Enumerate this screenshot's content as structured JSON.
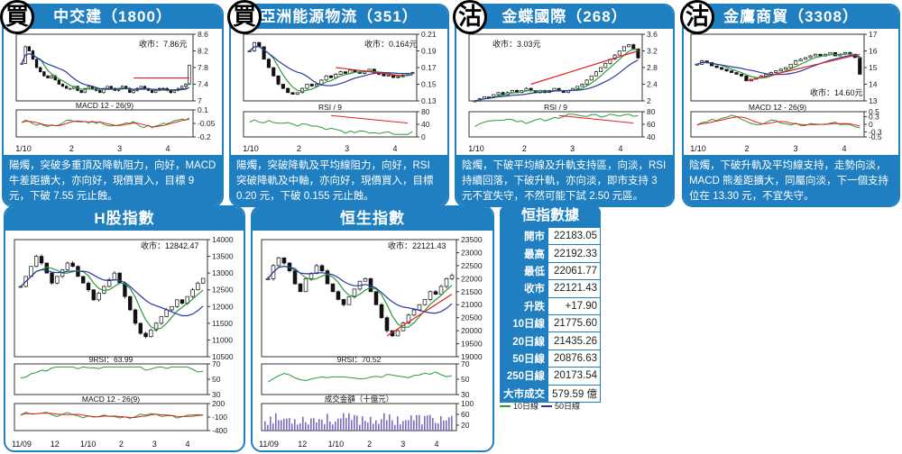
{
  "panels": [
    {
      "badge": "買",
      "title": "中交建（1800）",
      "close_label": "收市：7.86元",
      "macd_label": "MACD 12 - 26(9)",
      "desc": "陽燭，突破多重頂及降軌阻力，向好，MACD 牛差距擴大，亦向好，現價買入，目標 9 元，下破 7.55 元止蝕。"
    },
    {
      "badge": "買",
      "title": "亞洲能源物流（351）",
      "close_label": "收市：0.164元",
      "rsi_label": "RSI / 9",
      "desc": "陽燭，突破降軌及平均線阻力，向好，RSI 突破降軌及中軸，亦向好，現價買入，目標 0.20 元，下破 0.155 元止蝕。"
    },
    {
      "badge": "沽",
      "title": "金蝶國際（268）",
      "close_label": "收市：3.03元",
      "rsi_label": "RSI / 9",
      "desc": "陰燭，下破平均線及升軌支持區，向淡，RSI 持續回落，下破升軌，亦向淡，即市支持 3 元不宜失守，不然可能下試 2.50 元區。"
    },
    {
      "badge": "沽",
      "title": "金鷹商貿（3308）",
      "close_label": "收市：14.60元",
      "macd_label": "MACD 12 - 26(9)",
      "desc": "陰燭，下破升軌及平均線支持，走勢向淡，MACD 熊差距擴大，同屬向淡，下一個支持位在 13.30 元，不宜失守。"
    }
  ],
  "hshares": {
    "title": "H股指數",
    "close_label": "收市：12842.47",
    "rsi_label": "9RSI：63.99",
    "macd_label": "MACD 12 - 26(9)"
  },
  "hsi": {
    "title": "恒生指數",
    "close_label": "收市：22121.43",
    "rsi_label": "9RSI：70.52",
    "vol_label": "成交金額（十億元）"
  },
  "stats": {
    "title": "恒指數據",
    "rows": [
      {
        "label": "開市",
        "value": "22183.05"
      },
      {
        "label": "最高",
        "value": "22192.33"
      },
      {
        "label": "最低",
        "value": "22061.77"
      },
      {
        "label": "收市",
        "value": "22121.43"
      },
      {
        "label": "升跌",
        "value": "+17.90"
      },
      {
        "label": "10日線",
        "value": "21775.60"
      },
      {
        "label": "20日線",
        "value": "21435.26"
      },
      {
        "label": "50日線",
        "value": "20876.63"
      },
      {
        "label": "250日線",
        "value": "20173.54"
      },
      {
        "label": "大市成交",
        "value": "579.59 億"
      }
    ],
    "legend": [
      {
        "label": "10日線",
        "color": "#2e9a3a"
      },
      {
        "label": "50日線",
        "color": "#2a3aa0"
      }
    ]
  },
  "chart_data": [
    {
      "id": "p1800",
      "type": "candlestick",
      "ylim": [
        7.0,
        8.6
      ],
      "yticks": [
        7.0,
        7.4,
        7.8,
        8.2,
        8.6
      ],
      "xticks": [
        "1/10",
        "2",
        "3",
        "4"
      ],
      "close_approx": [
        7.9,
        8.3,
        8.2,
        8.0,
        7.8,
        7.7,
        7.6,
        7.55,
        7.6,
        7.5,
        7.4,
        7.35,
        7.3,
        7.3,
        7.35,
        7.25,
        7.2,
        7.3,
        7.35,
        7.3,
        7.25,
        7.2,
        7.3,
        7.35,
        7.3,
        7.25,
        7.3,
        7.35,
        7.3,
        7.2,
        7.25,
        7.3,
        7.35,
        7.3,
        7.25,
        7.2,
        7.25,
        7.3,
        7.3,
        7.25,
        7.2,
        7.25,
        7.3,
        7.35,
        7.4,
        7.86
      ],
      "sub_ylim": [
        -0.2,
        0.1
      ],
      "sub_yticks": [
        0.1,
        -0.05,
        -0.2
      ]
    },
    {
      "id": "p351",
      "type": "candlestick",
      "ylim": [
        0.13,
        0.21
      ],
      "yticks": [
        0.13,
        0.15,
        0.17,
        0.19,
        0.21
      ],
      "xticks": [
        "1/10",
        "2",
        "3",
        "4"
      ],
      "close_approx": [
        0.19,
        0.2,
        0.195,
        0.18,
        0.17,
        0.16,
        0.15,
        0.145,
        0.14,
        0.138,
        0.14,
        0.145,
        0.15,
        0.148,
        0.15,
        0.155,
        0.16,
        0.158,
        0.162,
        0.165,
        0.163,
        0.167,
        0.165,
        0.163,
        0.166,
        0.168,
        0.164,
        0.162,
        0.16,
        0.161,
        0.158,
        0.159,
        0.161,
        0.163,
        0.164
      ],
      "sub_ylim": [
        0,
        80
      ],
      "sub_yticks": [
        80,
        40,
        0
      ]
    },
    {
      "id": "p268",
      "type": "candlestick",
      "ylim": [
        2.0,
        3.6
      ],
      "yticks": [
        2.0,
        2.4,
        2.8,
        3.2,
        3.6
      ],
      "xticks": [
        "1/10",
        "2",
        "3",
        "4"
      ],
      "close_approx": [
        2.0,
        2.05,
        2.1,
        2.1,
        2.15,
        2.2,
        2.15,
        2.2,
        2.25,
        2.2,
        2.25,
        2.3,
        2.25,
        2.2,
        2.25,
        2.2,
        2.25,
        2.3,
        2.25,
        2.2,
        2.25,
        2.3,
        2.35,
        2.4,
        2.5,
        2.6,
        2.7,
        2.8,
        2.9,
        3.0,
        3.1,
        3.2,
        3.3,
        3.35,
        3.25,
        3.03
      ],
      "sub_ylim": [
        40,
        80
      ],
      "sub_yticks": [
        80,
        60,
        40
      ]
    },
    {
      "id": "p3308",
      "type": "candlestick",
      "ylim": [
        13,
        17
      ],
      "yticks": [
        13,
        14,
        15,
        16,
        17
      ],
      "xticks": [
        "1/10",
        "2",
        "3",
        "4"
      ],
      "close_approx": [
        15.2,
        15.4,
        15.3,
        15.1,
        15.0,
        14.9,
        14.8,
        14.7,
        14.6,
        14.5,
        14.2,
        14.3,
        14.4,
        14.5,
        14.6,
        14.7,
        14.8,
        14.9,
        15.0,
        15.2,
        15.4,
        15.5,
        15.6,
        15.7,
        15.8,
        15.7,
        15.8,
        15.9,
        15.7,
        15.8,
        15.9,
        15.8,
        15.6,
        14.6
      ],
      "sub_ylim": [
        -0.5,
        0.5
      ],
      "sub_yticks": [
        0.5,
        0.3,
        0,
        -0.3,
        -0.5
      ]
    },
    {
      "id": "hshares",
      "type": "candlestick",
      "ylim": [
        10500,
        14000
      ],
      "yticks": [
        10500,
        11000,
        11500,
        12000,
        12500,
        13000,
        13500,
        14000
      ],
      "xticks": [
        "11/09",
        "12",
        "1/10",
        "2",
        "3",
        "4"
      ],
      "close_approx": [
        12600,
        12900,
        13200,
        13500,
        13300,
        13000,
        12700,
        12900,
        13100,
        13300,
        13200,
        12900,
        12700,
        12500,
        12200,
        12400,
        12600,
        12800,
        13000,
        12700,
        12300,
        11900,
        11500,
        11200,
        11100,
        11300,
        11500,
        11700,
        11900,
        12000,
        12200,
        12100,
        12300,
        12500,
        12700,
        12842
      ],
      "rsi_ylim": [
        30,
        70
      ],
      "rsi_yticks": [
        70,
        50,
        30
      ],
      "macd_ylim": [
        -400,
        200
      ],
      "macd_yticks": [
        200,
        -100,
        -400
      ]
    },
    {
      "id": "hsi",
      "type": "candlestick",
      "ylim": [
        19000,
        23500
      ],
      "yticks": [
        19000,
        19500,
        20000,
        20500,
        21000,
        21500,
        22000,
        22500,
        23000,
        23500
      ],
      "xticks": [
        "11/09",
        "12",
        "1/10",
        "2",
        "3",
        "4"
      ],
      "close_approx": [
        22000,
        22500,
        22800,
        22600,
        22300,
        21800,
        21500,
        22000,
        22200,
        22500,
        22300,
        21800,
        21500,
        21200,
        21000,
        21300,
        21600,
        21900,
        22000,
        21500,
        21000,
        20500,
        20000,
        19800,
        20000,
        20300,
        20600,
        20800,
        21000,
        21200,
        21500,
        21400,
        21700,
        22000,
        22121
      ],
      "rsi_ylim": [
        30,
        70
      ],
      "rsi_yticks": [
        70,
        50,
        30
      ],
      "vol_ylim": [
        0,
        100
      ],
      "vol_yticks": [
        100,
        60,
        20
      ]
    }
  ]
}
